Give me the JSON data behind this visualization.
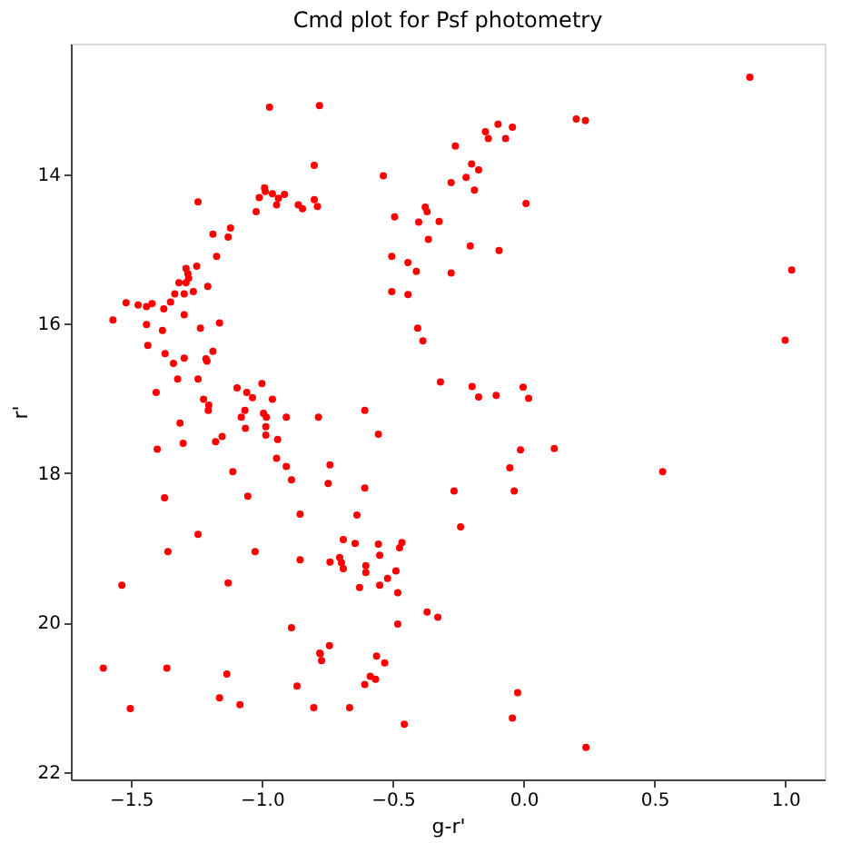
{
  "chart_data": {
    "type": "scatter",
    "title": "Cmd plot for Psf photometry",
    "xlabel": "g-r'",
    "ylabel": "r'",
    "xlim": [
      -1.73,
      1.15
    ],
    "ylim": [
      22.1,
      12.25
    ],
    "xticks": [
      {
        "value": -1.5,
        "label": "−1.5"
      },
      {
        "value": -1.0,
        "label": "−1.0"
      },
      {
        "value": -0.5,
        "label": "−0.5"
      },
      {
        "value": 0.0,
        "label": "0.0"
      },
      {
        "value": 0.5,
        "label": "0.5"
      },
      {
        "value": 1.0,
        "label": "1.0"
      }
    ],
    "yticks": [
      14,
      16,
      18,
      20,
      22
    ],
    "grid": false,
    "marker": "circle",
    "legend": false,
    "series": [
      {
        "color": "#ff0000",
        "x": [
          -0.971,
          -0.78,
          -0.8,
          -1.244,
          -0.99,
          -1.01,
          -0.987,
          -0.96,
          -0.937,
          -0.914,
          -0.944,
          -1.022,
          -0.861,
          -0.845,
          -0.8,
          -0.788,
          -1.12,
          -1.129,
          -1.187,
          -1.173,
          -1.249,
          -1.29,
          -1.283,
          -1.28,
          -1.29,
          -1.317,
          -1.207,
          -1.262,
          -1.297,
          -1.333,
          -1.349,
          -1.375,
          -1.42,
          -1.441,
          -1.473,
          -1.519,
          -1.569,
          -1.441,
          -1.297,
          -1.162,
          -1.235,
          -1.38,
          -1.436,
          -1.37,
          -1.297,
          -1.187,
          -1.214,
          -1.21,
          -1.338,
          -1.322,
          -1.244,
          -1.404,
          -1.095,
          -1.058,
          -1.0,
          -1.036,
          -0.96,
          -1.223,
          -1.203,
          -1.205,
          -1.065,
          -1.079,
          -0.994,
          -0.983,
          -0.907,
          -0.784,
          -1.313,
          -0.536,
          -0.261,
          -0.146,
          -0.098,
          -0.135,
          -0.043,
          -0.069,
          -0.199,
          -0.172,
          -0.22,
          -0.277,
          -0.188,
          0.009,
          -0.376,
          -0.369,
          -0.401,
          -0.323,
          -0.493,
          -0.364,
          -0.204,
          -0.094,
          -0.504,
          -0.442,
          -0.41,
          -0.277,
          -0.504,
          -0.442,
          -0.405,
          -0.385,
          -0.318,
          -0.197,
          -0.172,
          -0.105,
          -0.002,
          0.019,
          -0.607,
          0.864,
          0.201,
          0.236,
          1.024,
          0.999,
          -1.4,
          -1.301,
          -1.177,
          -1.152,
          -1.063,
          -0.985,
          -0.985,
          -0.94,
          -0.944,
          -0.907,
          -0.887,
          -1.111,
          -1.054,
          -1.372,
          -0.854,
          -1.244,
          -1.359,
          -1.026,
          -0.854,
          -1.129,
          -1.535,
          -0.887,
          -0.779,
          -1.606,
          -1.363,
          -1.134,
          -0.866,
          -1.162,
          -1.084,
          -1.503,
          -0.802,
          -0.555,
          -0.74,
          -0.747,
          -0.607,
          -0.012,
          0.117,
          -0.053,
          -0.036,
          -0.266,
          -0.637,
          -0.241,
          -0.689,
          -0.644,
          -0.555,
          -0.465,
          -0.474,
          -0.74,
          -0.703,
          -0.696,
          -0.689,
          -0.603,
          -0.603,
          -0.55,
          -0.488,
          -0.52,
          -0.627,
          -0.55,
          -0.481,
          -0.369,
          -0.328,
          -0.481,
          -0.742,
          -0.777,
          -0.772,
          -0.562,
          -0.531,
          -0.586,
          -0.566,
          -0.607,
          -0.665,
          -0.456,
          -0.023,
          -0.043,
          0.531,
          0.238
        ],
        "values": [
          13.1,
          13.08,
          13.88,
          14.37,
          14.18,
          14.31,
          14.23,
          14.26,
          14.32,
          14.27,
          14.41,
          14.5,
          14.41,
          14.46,
          14.34,
          14.43,
          14.72,
          14.84,
          14.8,
          15.1,
          15.23,
          15.26,
          15.33,
          15.39,
          15.45,
          15.45,
          15.5,
          15.57,
          15.6,
          15.6,
          15.71,
          15.8,
          15.73,
          15.77,
          15.75,
          15.72,
          15.95,
          16.01,
          15.88,
          15.99,
          16.06,
          16.09,
          16.29,
          16.4,
          16.46,
          16.37,
          16.47,
          16.5,
          16.53,
          16.74,
          16.74,
          16.92,
          16.86,
          16.92,
          16.8,
          16.99,
          17.01,
          17.01,
          17.09,
          17.16,
          17.16,
          17.25,
          17.2,
          17.25,
          17.25,
          17.25,
          17.33,
          14.02,
          13.62,
          13.43,
          13.33,
          13.52,
          13.37,
          13.52,
          13.86,
          13.94,
          14.04,
          14.11,
          14.21,
          14.39,
          14.44,
          14.5,
          14.64,
          14.63,
          14.57,
          14.87,
          14.96,
          15.02,
          15.1,
          15.18,
          15.3,
          15.32,
          15.57,
          15.61,
          16.06,
          16.23,
          16.78,
          16.84,
          16.98,
          16.96,
          16.85,
          17.0,
          17.16,
          12.7,
          13.26,
          13.28,
          15.28,
          16.22,
          17.68,
          17.6,
          17.58,
          17.51,
          17.4,
          17.38,
          17.49,
          17.55,
          17.8,
          17.91,
          18.09,
          17.98,
          18.31,
          18.33,
          18.55,
          18.82,
          19.05,
          19.05,
          19.16,
          19.47,
          19.5,
          20.07,
          20.41,
          20.61,
          20.61,
          20.69,
          20.85,
          21.01,
          21.1,
          21.15,
          21.14,
          17.48,
          17.89,
          18.14,
          18.2,
          17.69,
          17.67,
          17.93,
          18.24,
          18.24,
          18.56,
          18.72,
          18.89,
          18.94,
          18.95,
          18.93,
          19.0,
          19.19,
          19.13,
          19.2,
          19.28,
          19.24,
          19.33,
          19.1,
          19.31,
          19.41,
          19.53,
          19.5,
          19.6,
          19.86,
          19.93,
          20.02,
          20.31,
          20.42,
          20.51,
          20.45,
          20.54,
          20.72,
          20.76,
          20.83,
          21.14,
          21.36,
          20.94,
          21.28,
          17.98,
          21.67
        ]
      }
    ]
  }
}
